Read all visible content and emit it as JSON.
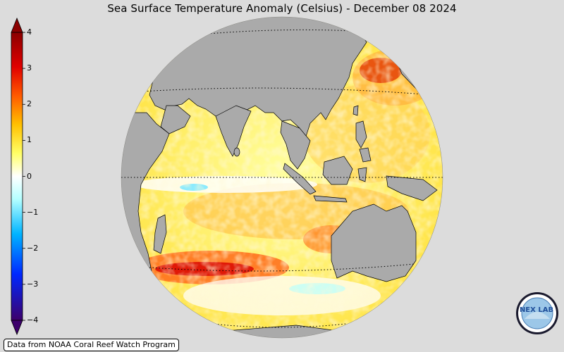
{
  "title": "Sea Surface Temperature Anomaly (Celsius) - December 08 2024",
  "colorbar": {
    "min": -4,
    "max": 4,
    "ticks": [
      "4",
      "3",
      "2",
      "1",
      "0",
      "−1",
      "−2",
      "−3",
      "−4"
    ],
    "extend": "both",
    "colors": [
      "#3d006b",
      "#0028ff",
      "#00b4ff",
      "#b3ffff",
      "#ffffff",
      "#ffff66",
      "#ffc000",
      "#ff5a00",
      "#e00000",
      "#8b0000"
    ]
  },
  "map": {
    "projection": "orthographic",
    "land_color": "#aaaaaa",
    "outside_color": "#dcdcdc",
    "coastline_color": "#000000",
    "parallels": "dotted"
  },
  "credit": "Data from NOAA Coral Reef Watch Program",
  "logo": {
    "text": "NEX LAB",
    "ring_text": "NEX LAB",
    "icon": "nexlab-logo-icon"
  }
}
